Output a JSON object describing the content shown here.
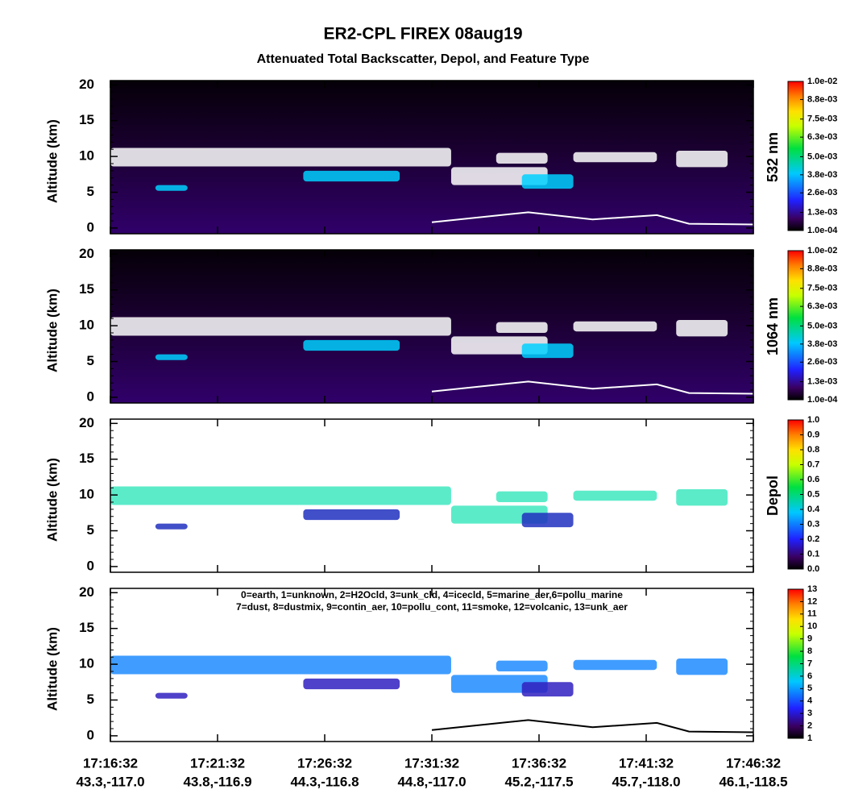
{
  "chart_data": {
    "type": "lidar-curtain",
    "title": "ER2-CPL FIREX 08aug19",
    "subtitle": "Attenuated Total Backscatter, Depol, and Feature Type",
    "y_axis_label": "Altitude (km)",
    "ylim": [
      -0.8,
      20.6
    ],
    "yticks": [
      0,
      5,
      10,
      15,
      20
    ],
    "xticks": [
      {
        "time": "17:16:32",
        "location": "43.3,-117.0"
      },
      {
        "time": "17:21:32",
        "location": "43.8,-116.9"
      },
      {
        "time": "17:26:32",
        "location": "44.3,-116.8"
      },
      {
        "time": "17:31:32",
        "location": "44.8,-117.0"
      },
      {
        "time": "17:36:32",
        "location": "45.2,-117.5"
      },
      {
        "time": "17:41:32",
        "location": "45.7,-118.0"
      },
      {
        "time": "17:46:32",
        "location": "46.1,-118.5"
      }
    ],
    "panels": [
      {
        "colorbar_label": "532 nm",
        "clim": [
          0.0001,
          0.01
        ],
        "colorbar_ticks": [
          {
            "value": 0.0001,
            "label": "1.0e-04"
          },
          {
            "value": 0.0013,
            "label": "1.3e-03"
          },
          {
            "value": 0.0026,
            "label": "2.6e-03"
          },
          {
            "value": 0.0038,
            "label": "3.8e-03"
          },
          {
            "value": 0.005,
            "label": "5.0e-03"
          },
          {
            "value": 0.0063,
            "label": "6.3e-03"
          },
          {
            "value": 0.0075,
            "label": "7.5e-03"
          },
          {
            "value": 0.0088,
            "label": "8.8e-03"
          },
          {
            "value": 0.01,
            "label": "1.0e-02"
          }
        ]
      },
      {
        "colorbar_label": "1064 nm",
        "clim": [
          0.0001,
          0.01
        ],
        "colorbar_ticks": [
          {
            "value": 0.0001,
            "label": "1.0e-04"
          },
          {
            "value": 0.0013,
            "label": "1.3e-03"
          },
          {
            "value": 0.0026,
            "label": "2.6e-03"
          },
          {
            "value": 0.0038,
            "label": "3.8e-03"
          },
          {
            "value": 0.005,
            "label": "5.0e-03"
          },
          {
            "value": 0.0063,
            "label": "6.3e-03"
          },
          {
            "value": 0.0075,
            "label": "7.5e-03"
          },
          {
            "value": 0.0088,
            "label": "8.8e-03"
          },
          {
            "value": 0.01,
            "label": "1.0e-02"
          }
        ]
      },
      {
        "colorbar_label": "Depol",
        "clim": [
          0,
          1
        ],
        "colorbar_ticks": [
          {
            "value": 0,
            "label": "0.0"
          },
          {
            "value": 0.1,
            "label": "0.1"
          },
          {
            "value": 0.2,
            "label": "0.2"
          },
          {
            "value": 0.3,
            "label": "0.3"
          },
          {
            "value": 0.4,
            "label": "0.4"
          },
          {
            "value": 0.5,
            "label": "0.5"
          },
          {
            "value": 0.6,
            "label": "0.6"
          },
          {
            "value": 0.7,
            "label": "0.7"
          },
          {
            "value": 0.8,
            "label": "0.8"
          },
          {
            "value": 0.9,
            "label": "0.9"
          },
          {
            "value": 1,
            "label": "1.0"
          }
        ]
      },
      {
        "colorbar_label": null,
        "clim": [
          1,
          13
        ],
        "colorbar_ticks": [
          1,
          2,
          3,
          4,
          5,
          6,
          7,
          8,
          9,
          10,
          11,
          12,
          13
        ],
        "legend_lines": [
          "0=earth, 1=unknown, 2=H2Ocld, 3=unk_cld, 4=icecld, 5=marine_aer,6=pollu_marine",
          "7=dust, 8=dustmix, 9=contin_aer, 10=pollu_cont, 11=smoke, 12=volcanic, 13=unk_aer"
        ]
      }
    ]
  }
}
